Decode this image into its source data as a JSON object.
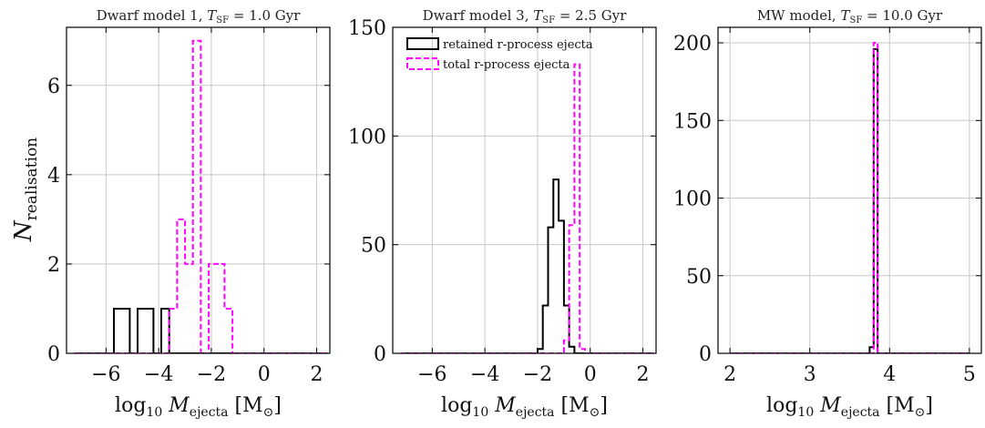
{
  "figure": {
    "ylabel_main": "N",
    "ylabel_sub": "realisation"
  },
  "legend": {
    "retained": "retained r-process ejecta",
    "total": "total r-process ejecta"
  },
  "colors": {
    "retained": "#000000",
    "total": "#ff00ff",
    "grid": "#c8c8c8"
  },
  "chart_data": [
    {
      "type": "histogram",
      "title_prefix": "Dwarf model 1, ",
      "title_var": "T",
      "title_sub": "SF",
      "title_suffix": " = 1.0 Gyr",
      "xlabel_pre": "log",
      "xlabel_log_sub": "10",
      "xlabel_var": " M",
      "xlabel_var_sub": "ejecta",
      "xlabel_unit": " [M",
      "xlabel_unit_sub": "⊙",
      "xlabel_close": "]",
      "xlim": [
        -7.5,
        2.5
      ],
      "ylim": [
        0,
        7.3
      ],
      "xticks": [
        -6,
        -4,
        -2,
        0,
        2
      ],
      "xtick_labels": [
        "−6",
        "−4",
        "−2",
        "0",
        "2"
      ],
      "yticks": [
        0,
        2,
        4,
        6
      ],
      "ytick_labels": [
        "0",
        "2",
        "4",
        "6"
      ],
      "bin_width": 0.3,
      "series": [
        {
          "key": "retained",
          "bin_start": -7.2,
          "counts": [
            0,
            0,
            0,
            0,
            0,
            1,
            1,
            0,
            1,
            1,
            0,
            1,
            0,
            0,
            0,
            0,
            0,
            0,
            0,
            0,
            0,
            0,
            0,
            0,
            0,
            0,
            0,
            0,
            0,
            0,
            0,
            0
          ]
        },
        {
          "key": "total",
          "bin_start": -7.2,
          "counts": [
            0,
            0,
            0,
            0,
            0,
            0,
            0,
            0,
            0,
            0,
            0,
            0,
            1,
            3,
            2,
            7,
            0,
            2,
            2,
            1,
            0,
            0,
            0,
            0,
            0,
            0,
            0,
            0,
            0,
            0,
            0,
            0
          ]
        }
      ]
    },
    {
      "type": "histogram",
      "title_prefix": "Dwarf model 3, ",
      "title_var": "T",
      "title_sub": "SF",
      "title_suffix": " = 2.5 Gyr",
      "xlabel_pre": "log",
      "xlabel_log_sub": "10",
      "xlabel_var": " M",
      "xlabel_var_sub": "ejecta",
      "xlabel_unit": " [M",
      "xlabel_unit_sub": "⊙",
      "xlabel_close": "]",
      "xlim": [
        -7.5,
        2.5
      ],
      "ylim": [
        0,
        150
      ],
      "xticks": [
        -6,
        -4,
        -2,
        0,
        2
      ],
      "xtick_labels": [
        "−6",
        "−4",
        "−2",
        "0",
        "2"
      ],
      "yticks": [
        0,
        50,
        100,
        150
      ],
      "ytick_labels": [
        "0",
        "50",
        "100",
        "150"
      ],
      "bin_width": 0.2,
      "legend": "top-left",
      "series": [
        {
          "key": "retained",
          "bin_start": -7.2,
          "counts": [
            0,
            0,
            0,
            0,
            0,
            0,
            0,
            0,
            0,
            0,
            0,
            0,
            0,
            0,
            0,
            0,
            0,
            0,
            0,
            0,
            0,
            0,
            0,
            0,
            0,
            0,
            2,
            22,
            58,
            80,
            61,
            22,
            3,
            0,
            0,
            0,
            0,
            0,
            0,
            0,
            0,
            0,
            0,
            0,
            0,
            0,
            0,
            0
          ]
        },
        {
          "key": "total",
          "bin_start": -7.2,
          "counts": [
            0,
            0,
            0,
            0,
            0,
            0,
            0,
            0,
            0,
            0,
            0,
            0,
            0,
            0,
            0,
            0,
            0,
            0,
            0,
            0,
            0,
            0,
            0,
            0,
            0,
            0,
            0,
            0,
            0,
            0,
            0,
            6,
            59,
            133,
            2,
            0,
            0,
            0,
            0,
            0,
            0,
            0,
            0,
            0,
            0,
            0,
            0,
            0
          ]
        }
      ]
    },
    {
      "type": "histogram",
      "title_prefix": "MW model, ",
      "title_var": "T",
      "title_sub": "SF",
      "title_suffix": " = 10.0 Gyr",
      "xlabel_pre": "log",
      "xlabel_log_sub": "10",
      "xlabel_var": " M",
      "xlabel_var_sub": "ejecta",
      "xlabel_unit": " [M",
      "xlabel_unit_sub": "⊙",
      "xlabel_close": "]",
      "xlim": [
        1.85,
        5.15
      ],
      "ylim": [
        0,
        210
      ],
      "xticks": [
        2,
        3,
        4,
        5
      ],
      "xtick_labels": [
        "2",
        "3",
        "4",
        "5"
      ],
      "yticks": [
        0,
        50,
        100,
        150,
        200
      ],
      "ytick_labels": [
        "0",
        "50",
        "100",
        "150",
        "200"
      ],
      "bin_width": 0.05,
      "series": [
        {
          "key": "retained",
          "bin_start": 2.0,
          "counts": [
            0,
            0,
            0,
            0,
            0,
            0,
            0,
            0,
            0,
            0,
            0,
            0,
            0,
            0,
            0,
            0,
            0,
            0,
            0,
            0,
            0,
            0,
            0,
            0,
            0,
            0,
            0,
            0,
            0,
            0,
            0,
            0,
            0,
            0,
            0,
            4,
            196,
            0,
            0,
            0,
            0,
            0,
            0,
            0,
            0,
            0,
            0,
            0,
            0,
            0,
            0,
            0,
            0,
            0,
            0,
            0,
            0,
            0,
            0,
            0
          ]
        },
        {
          "key": "total",
          "bin_start": 2.0,
          "counts": [
            0,
            0,
            0,
            0,
            0,
            0,
            0,
            0,
            0,
            0,
            0,
            0,
            0,
            0,
            0,
            0,
            0,
            0,
            0,
            0,
            0,
            0,
            0,
            0,
            0,
            0,
            0,
            0,
            0,
            0,
            0,
            0,
            0,
            0,
            0,
            0,
            200,
            0,
            0,
            0,
            0,
            0,
            0,
            0,
            0,
            0,
            0,
            0,
            0,
            0,
            0,
            0,
            0,
            0,
            0,
            0,
            0,
            0,
            0,
            0
          ]
        }
      ]
    }
  ]
}
